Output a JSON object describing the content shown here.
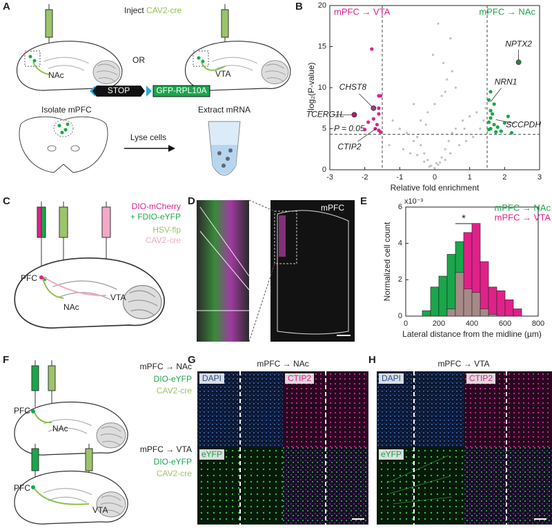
{
  "panels": {
    "labels": [
      "A",
      "B",
      "C",
      "D",
      "E",
      "F",
      "G",
      "H"
    ]
  },
  "a": {
    "inject": "Inject",
    "inject_virus": "CAV2-cre",
    "nac": "NAc",
    "or": "OR",
    "vta": "VTA",
    "stop": "STOP",
    "gfp": "GFP-RPL10A",
    "isolate": "Isolate mPFC",
    "lyse": "Lyse cells",
    "extract": "Extract mRNA"
  },
  "c": {
    "dio_mcherry": "DIO-mCherry",
    "fdio": "+ FDIO-eYFP",
    "hsv": "HSV-flp",
    "cav2": "CAV2-cre",
    "pfc": "PFC",
    "nac": "NAc",
    "vta": "VTA"
  },
  "d": {
    "mpfc": "mPFC"
  },
  "f": {
    "top": {
      "title": "mPFC → NAc",
      "dio": "DIO-eYFP",
      "cav2": "CAV2-cre",
      "pfc": "PFC",
      "target": "NAc"
    },
    "bottom": {
      "title": "mPFC → VTA",
      "dio": "DIO-eYFP",
      "cav2": "CAV2-cre",
      "pfc": "PFC",
      "target": "VTA"
    }
  },
  "g": {
    "title": "mPFC → NAc",
    "dapi": "DAPI",
    "ctip2": "CTIP2",
    "eyfp": "eYFP"
  },
  "h": {
    "title": "mPFC → VTA",
    "dapi": "DAPI",
    "ctip2": "CTIP2",
    "eyfp": "eYFP"
  },
  "chart_data": [
    {
      "type": "scatter",
      "xlabel": "Relative fold enrichment",
      "ylabel": "-log₂(P-value)",
      "xlim": [
        -3,
        3
      ],
      "xticks": [
        -3,
        -2,
        -1,
        0,
        1,
        2,
        3
      ],
      "ylim": [
        0,
        20
      ],
      "yticks": [
        0,
        5,
        10,
        15,
        20
      ],
      "threshold_label": "P = 0.05",
      "threshold_y": 4.32,
      "fold_thresholds": [
        -1.5,
        1.5
      ],
      "series": [
        {
          "color": "#c0c0c0",
          "x": [
            -1.2,
            -1.0,
            -0.8,
            -0.6,
            -0.5,
            -0.4,
            -0.3,
            -0.2,
            -0.1,
            0,
            0.1,
            0.2,
            0.3,
            0.4,
            0.5,
            0.6,
            0.8,
            1.0,
            1.2,
            1.4,
            -1.3,
            -0.9,
            -0.7,
            -0.5,
            -0.3,
            -0.15,
            0.05,
            0.15,
            0.3,
            0.45,
            0.7,
            0.9,
            1.1,
            1.3,
            -0.4,
            -0.2,
            0,
            0.2,
            0.35,
            0.5,
            0.1,
            -0.05,
            0.6,
            0.25,
            -0.6,
            0.85,
            0.45,
            0.3,
            -0.25,
            1.45
          ],
          "values": [
            6,
            5,
            4.5,
            3.5,
            4,
            3,
            2,
            1.2,
            0.5,
            0.2,
            0.6,
            1.5,
            2.5,
            3.5,
            4.5,
            5,
            6,
            6.5,
            7,
            6,
            3,
            2.5,
            2,
            1.8,
            1,
            0.4,
            0.8,
            0.9,
            1.2,
            2,
            3,
            3.5,
            4,
            5,
            6,
            7,
            8,
            9,
            11,
            12,
            17.8,
            14,
            10,
            13,
            8,
            5,
            16,
            9.5,
            5.5,
            7.5
          ]
        },
        {
          "name": "mPFC → VTA",
          "color": "#e0218a",
          "x": [
            -1.6,
            -1.55,
            -1.6,
            -1.8,
            -1.65,
            -1.7,
            -1.6,
            -1.55,
            -1.9,
            -1.75,
            -1.6,
            -2.0
          ],
          "values": [
            9,
            9,
            7.5,
            14.7,
            5.5,
            5,
            4.8,
            4.6,
            5.8,
            6.2,
            6.8,
            4.9
          ]
        },
        {
          "name": "mPFC → NAc",
          "color": "#1aa64a",
          "x": [
            1.6,
            1.55,
            1.7,
            1.6,
            1.65,
            1.6,
            1.55,
            1.7,
            1.8,
            1.6,
            1.9,
            2.2,
            2.1,
            1.75,
            1.55,
            2.0
          ],
          "values": [
            9.5,
            8.5,
            8,
            7.2,
            6.8,
            6.3,
            5.8,
            5.5,
            5.2,
            5,
            4.7,
            4.5,
            6.5,
            4.6,
            4.9,
            5.7
          ]
        }
      ],
      "annotations": [
        {
          "text": "CHST8",
          "x": -1.75,
          "y": 7.5,
          "color": "#9b3d73"
        },
        {
          "text": "TCERG1L",
          "x": -2.3,
          "y": 6.7,
          "color": "#b01a6c"
        },
        {
          "text": "CTIP2",
          "x": -1.65,
          "y": 5.1
        },
        {
          "text": "NPTX2",
          "x": 2.4,
          "y": 13.1,
          "color": "#2e7d4a"
        },
        {
          "text": "NRN1",
          "x": 1.6,
          "y": 8.3
        },
        {
          "text": "SCCPDH",
          "x": 1.75,
          "y": 6.1
        }
      ]
    },
    {
      "type": "histogram",
      "xlabel": "Lateral distance from the midline (µm)",
      "ylabel": "Normalized cell count",
      "scale_label": "x10⁻³",
      "annotation": "*",
      "xlim": [
        0,
        800
      ],
      "xticks": [
        0,
        200,
        400,
        600,
        800
      ],
      "ylim": [
        0,
        6
      ],
      "yticks": [
        0,
        2,
        4,
        6
      ],
      "bins": [
        0,
        50,
        100,
        150,
        200,
        250,
        300,
        350,
        400,
        450,
        500,
        550,
        600,
        650,
        700,
        750,
        800
      ],
      "overlap_color": "#a58a87",
      "legend": "upper right",
      "series": [
        {
          "name": "mPFC → NAc",
          "color": "#1aa64a",
          "values": [
            0,
            0,
            0.3,
            1.6,
            2.2,
            3.4,
            4.1,
            1.5,
            1.3,
            0.4,
            0.1,
            0,
            0,
            0,
            0,
            0
          ]
        },
        {
          "name": "mPFC → VTA",
          "color": "#e0218a",
          "values": [
            0,
            0,
            0,
            0,
            0,
            0.4,
            2.4,
            4.6,
            5.1,
            3.0,
            1.6,
            1.4,
            0.9,
            0.4,
            0,
            0
          ]
        }
      ]
    }
  ]
}
